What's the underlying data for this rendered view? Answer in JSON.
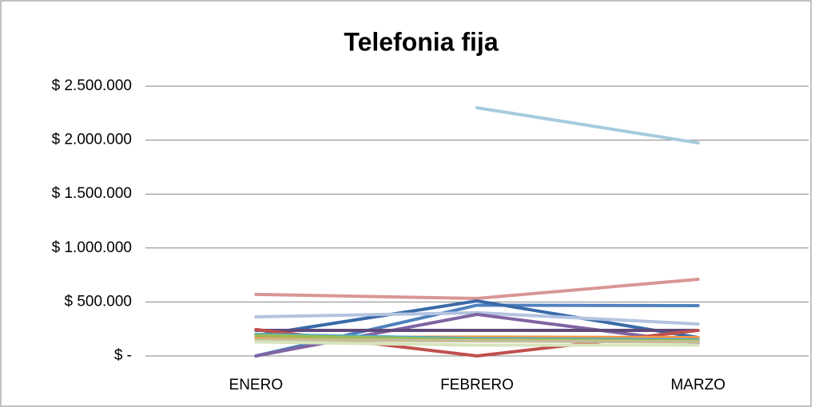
{
  "chart_data": {
    "type": "line",
    "title": "Telefonia fija",
    "categories": [
      "ENERO",
      "FEBRERO",
      "MARZO"
    ],
    "series": [
      {
        "color": "#a5cbdd",
        "values": [
          null,
          2300000,
          1975000
        ]
      },
      {
        "color": "#d99694",
        "values": [
          570000,
          533000,
          710000
        ]
      },
      {
        "color": "#4f81bd",
        "values": [
          0,
          470000,
          466000
        ]
      },
      {
        "color": "#3a6aa8",
        "values": [
          190000,
          510000,
          170000
        ]
      },
      {
        "color": "#b3c3e0",
        "values": [
          362000,
          400000,
          296000
        ]
      },
      {
        "color": "#8064a2",
        "values": [
          0,
          385000,
          120000
        ]
      },
      {
        "color": "#604a7b",
        "values": [
          237000,
          237000,
          237000
        ]
      },
      {
        "color": "#c0504d",
        "values": [
          245000,
          0,
          237000
        ]
      },
      {
        "color": "#f79646",
        "values": [
          170000,
          175000,
          170000
        ]
      },
      {
        "color": "#4bacc6",
        "values": [
          200000,
          160000,
          150000
        ]
      },
      {
        "color": "#9bbb59",
        "values": [
          190000,
          150000,
          140000
        ]
      },
      {
        "color": "#c4bd97",
        "values": [
          150000,
          140000,
          130000
        ]
      },
      {
        "color": "#d7e4bd",
        "values": [
          130000,
          100000,
          100000
        ]
      }
    ],
    "ylim": [
      0,
      2500000
    ],
    "yticks": [
      {
        "value": 0,
        "label": "$ -"
      },
      {
        "value": 500000,
        "label": "$ 500.000"
      },
      {
        "value": 1000000,
        "label": "$ 1.000.000"
      },
      {
        "value": 1500000,
        "label": "$ 1.500.000"
      },
      {
        "value": 2000000,
        "label": "$ 2.000.000"
      },
      {
        "value": 2500000,
        "label": "$ 2.500.000"
      }
    ],
    "grid": true
  }
}
